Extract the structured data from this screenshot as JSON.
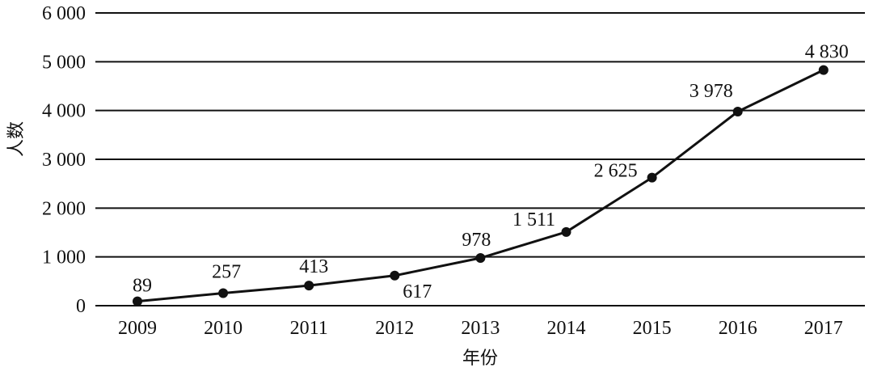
{
  "chart_data": {
    "type": "line",
    "title": "",
    "xlabel": "年份",
    "ylabel": "人数",
    "ylim": [
      0,
      6000
    ],
    "yticks": [
      0,
      1000,
      2000,
      3000,
      4000,
      5000,
      6000
    ],
    "ytick_labels": [
      "0",
      "1 000",
      "2 000",
      "3 000",
      "4 000",
      "5 000",
      "6 000"
    ],
    "grid": true,
    "categories": [
      "2009",
      "2010",
      "2011",
      "2012",
      "2013",
      "2014",
      "2015",
      "2016",
      "2017"
    ],
    "series": [
      {
        "values": [
          89,
          257,
          413,
          617,
          978,
          1511,
          2625,
          3978,
          4830
        ],
        "data_labels": [
          "89",
          "257",
          "413",
          "617",
          "978",
          "1 511",
          "2 625",
          "3 978",
          "4 830"
        ]
      }
    ],
    "colors": {
      "line": "#111111",
      "grid": "#111111"
    }
  }
}
